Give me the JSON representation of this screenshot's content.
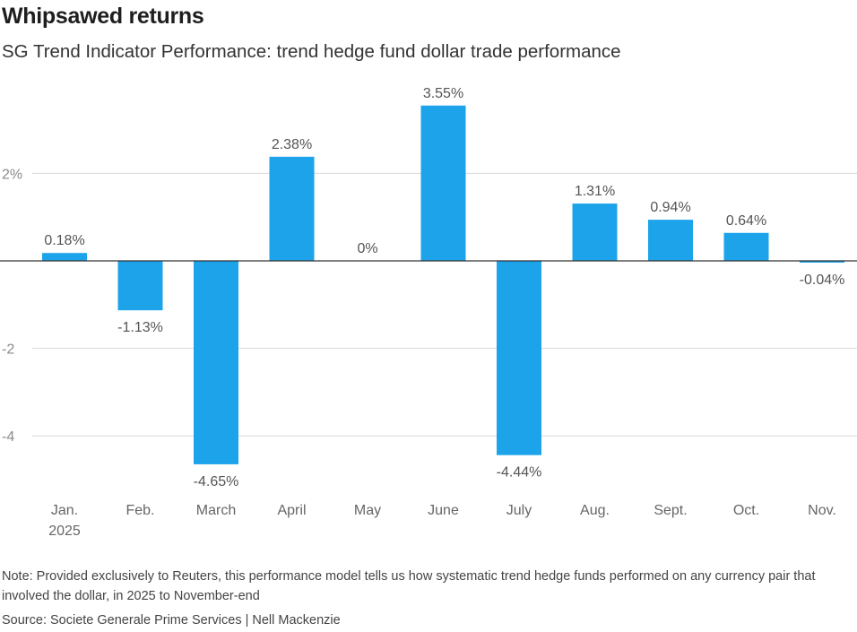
{
  "header": {
    "title": "Whipsawed returns",
    "subtitle": "SG Trend Indicator Performance: trend hedge fund dollar trade performance"
  },
  "chart_data": {
    "type": "bar",
    "title": "Whipsawed returns",
    "subtitle": "SG Trend Indicator Performance: trend hedge fund dollar trade performance",
    "xlabel": "",
    "ylabel": "",
    "categories": [
      "Jan.",
      "Feb.",
      "March",
      "April",
      "May",
      "June",
      "July",
      "Aug.",
      "Sept.",
      "Oct.",
      "Nov."
    ],
    "year_label": "2025",
    "values": [
      0.18,
      -1.13,
      -4.65,
      2.38,
      0,
      3.55,
      -4.44,
      1.31,
      0.94,
      0.64,
      -0.04
    ],
    "data_labels": [
      "0.18%",
      "-1.13%",
      "-4.65%",
      "2.38%",
      "0%",
      "3.55%",
      "-4.44%",
      "1.31%",
      "0.94%",
      "0.64%",
      "-0.04%"
    ],
    "yticks": [
      2,
      -2,
      -4
    ],
    "ytick_labels": [
      "2%",
      "-2",
      "-4"
    ],
    "ylim": [
      -5.3,
      3.8
    ],
    "grid": true,
    "bar_color": "#1ca3ea"
  },
  "footer": {
    "note": "Note: Provided exclusively to Reuters, this performance model tells us how systematic trend hedge funds performed on any currency pair that involved the dollar, in 2025 to November-end",
    "source": "Source: Societe Generale Prime Services | Nell Mackenzie"
  }
}
